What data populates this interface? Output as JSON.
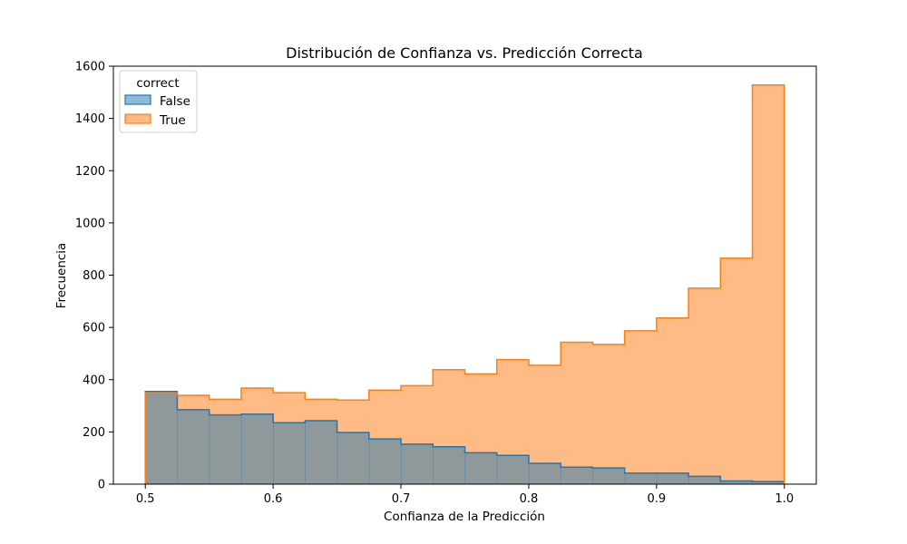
{
  "chart_data": {
    "type": "histogram",
    "title": "Distribución de Confianza vs. Predicción Correcta",
    "xlabel": "Confianza de la Predicción",
    "ylabel": "Frecuencia",
    "xlim": [
      0.475,
      1.025
    ],
    "ylim": [
      0,
      1600
    ],
    "xticks": [
      "0.5",
      "0.6",
      "0.7",
      "0.8",
      "0.9",
      "1.0"
    ],
    "yticks": [
      "0",
      "200",
      "400",
      "600",
      "800",
      "1000",
      "1200",
      "1400",
      "1600"
    ],
    "bin_edges": [
      0.5,
      0.525,
      0.55,
      0.575,
      0.6,
      0.625,
      0.65,
      0.675,
      0.7,
      0.725,
      0.75,
      0.775,
      0.8,
      0.825,
      0.85,
      0.875,
      0.9,
      0.925,
      0.95,
      0.975,
      1.0
    ],
    "grid": false,
    "legend": {
      "title": "correct",
      "position": "top-left"
    },
    "series": [
      {
        "name": "False",
        "color": "#1f77b4",
        "fill": "#1f77b4",
        "values": [
          355,
          285,
          265,
          268,
          235,
          243,
          198,
          173,
          153,
          143,
          120,
          110,
          80,
          65,
          62,
          42,
          42,
          30,
          12,
          10
        ]
      },
      {
        "name": "True",
        "color": "#ff7f0e",
        "fill": "#ffbb85",
        "values": [
          350,
          340,
          325,
          368,
          350,
          325,
          322,
          360,
          377,
          438,
          422,
          477,
          455,
          543,
          535,
          587,
          636,
          750,
          865,
          1528
        ]
      }
    ]
  }
}
